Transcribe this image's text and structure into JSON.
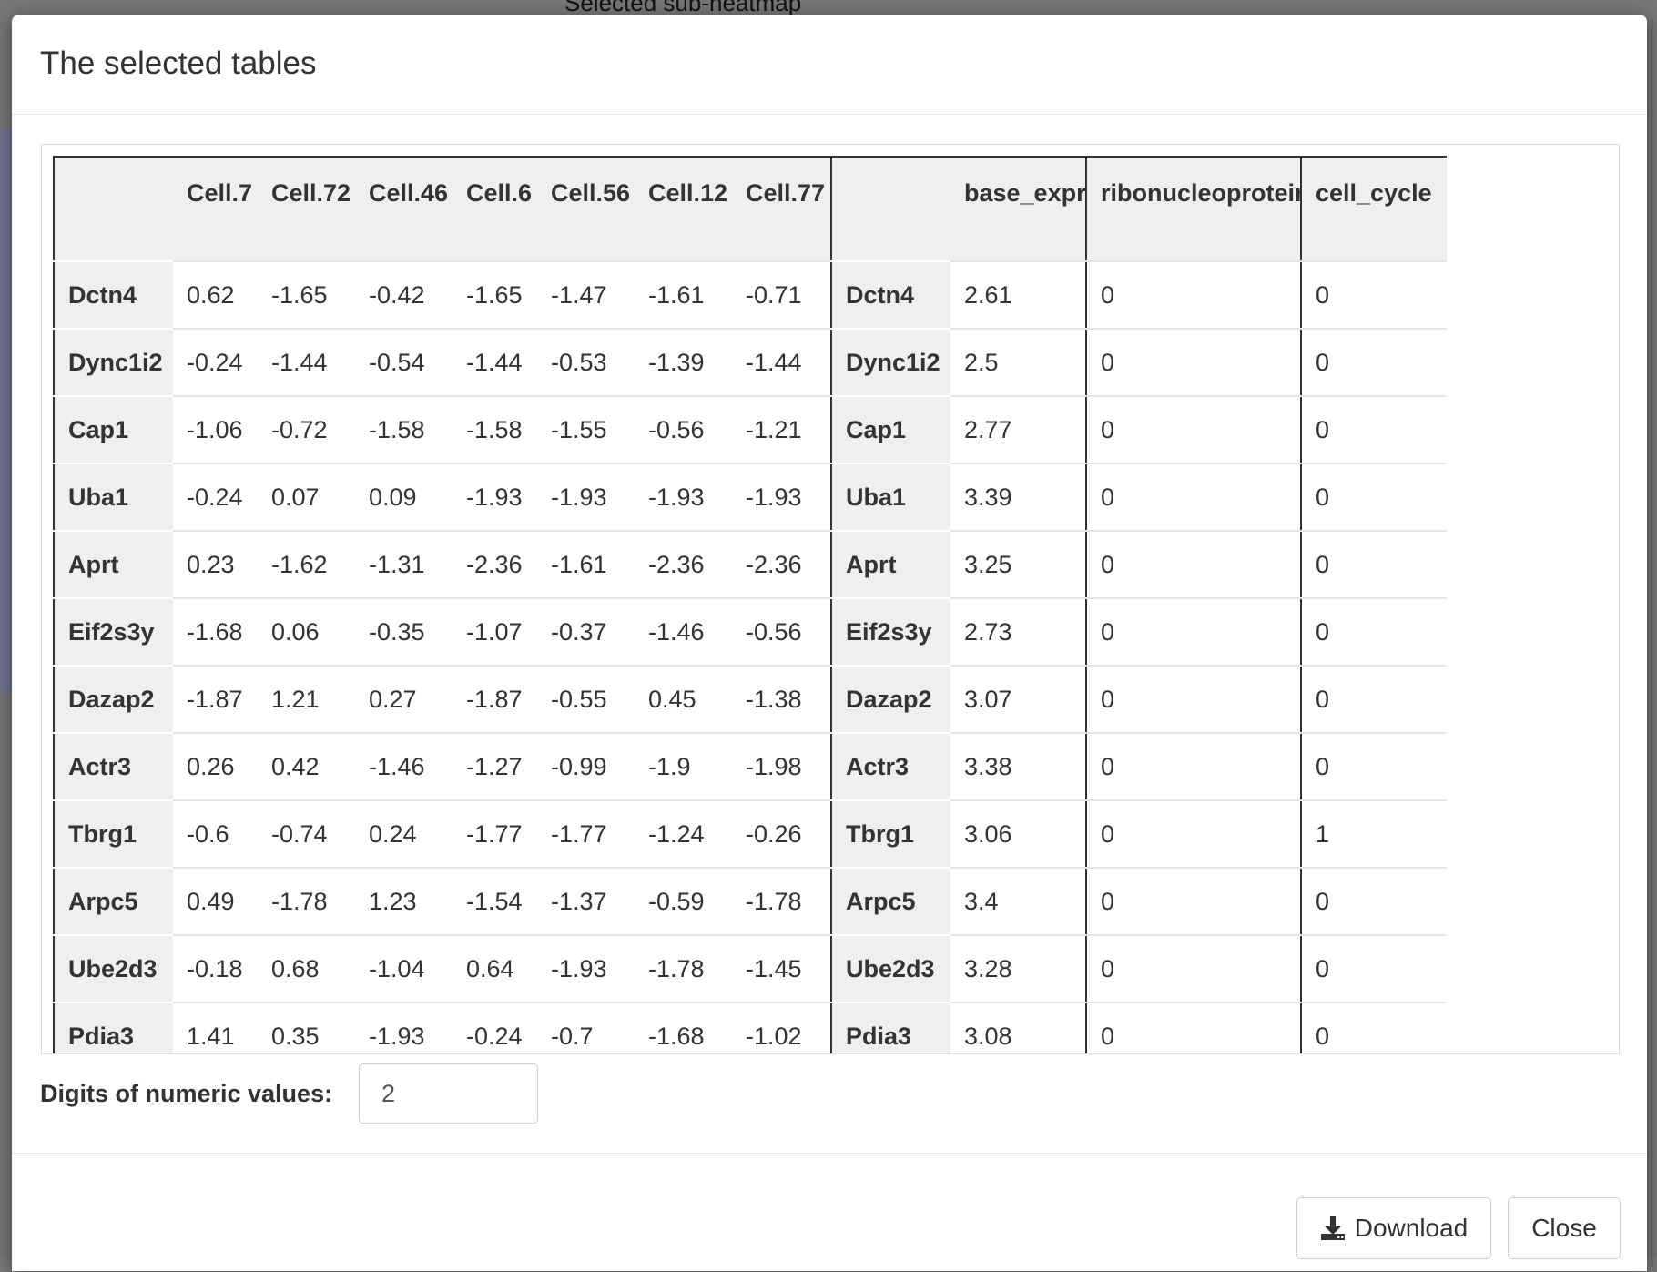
{
  "background": {
    "title": "Selected sub-heatmap"
  },
  "modal": {
    "title": "The selected tables",
    "digits_label": "Digits of numeric values:",
    "digits_value": "2",
    "download_label": "Download",
    "close_label": "Close"
  },
  "expr_table": {
    "columns": [
      "",
      "Cell.7",
      "Cell.72",
      "Cell.46",
      "Cell.6",
      "Cell.56",
      "Cell.12",
      "Cell.77"
    ],
    "rows": [
      {
        "gene": "Dctn4",
        "values": [
          "0.62",
          "-1.65",
          "-0.42",
          "-1.65",
          "-1.47",
          "-1.61",
          "-0.71"
        ]
      },
      {
        "gene": "Dync1i2",
        "values": [
          "-0.24",
          "-1.44",
          "-0.54",
          "-1.44",
          "-0.53",
          "-1.39",
          "-1.44"
        ]
      },
      {
        "gene": "Cap1",
        "values": [
          "-1.06",
          "-0.72",
          "-1.58",
          "-1.58",
          "-1.55",
          "-0.56",
          "-1.21"
        ]
      },
      {
        "gene": "Uba1",
        "values": [
          "-0.24",
          "0.07",
          "0.09",
          "-1.93",
          "-1.93",
          "-1.93",
          "-1.93"
        ]
      },
      {
        "gene": "Aprt",
        "values": [
          "0.23",
          "-1.62",
          "-1.31",
          "-2.36",
          "-1.61",
          "-2.36",
          "-2.36"
        ]
      },
      {
        "gene": "Eif2s3y",
        "values": [
          "-1.68",
          "0.06",
          "-0.35",
          "-1.07",
          "-0.37",
          "-1.46",
          "-0.56"
        ]
      },
      {
        "gene": "Dazap2",
        "values": [
          "-1.87",
          "1.21",
          "0.27",
          "-1.87",
          "-0.55",
          "0.45",
          "-1.38"
        ]
      },
      {
        "gene": "Actr3",
        "values": [
          "0.26",
          "0.42",
          "-1.46",
          "-1.27",
          "-0.99",
          "-1.9",
          "-1.98"
        ]
      },
      {
        "gene": "Tbrg1",
        "values": [
          "-0.6",
          "-0.74",
          "0.24",
          "-1.77",
          "-1.77",
          "-1.24",
          "-0.26"
        ]
      },
      {
        "gene": "Arpc5",
        "values": [
          "0.49",
          "-1.78",
          "1.23",
          "-1.54",
          "-1.37",
          "-0.59",
          "-1.78"
        ]
      },
      {
        "gene": "Ube2d3",
        "values": [
          "-0.18",
          "0.68",
          "-1.04",
          "0.64",
          "-1.93",
          "-1.78",
          "-1.45"
        ]
      },
      {
        "gene": "Pdia3",
        "values": [
          "1.41",
          "0.35",
          "-1.93",
          "-0.24",
          "-0.7",
          "-1.68",
          "-1.02"
        ]
      }
    ]
  },
  "anno_table": {
    "columns": [
      "",
      "base_expr"
    ],
    "rows": [
      {
        "gene": "Dctn4",
        "values": [
          "2.61"
        ]
      },
      {
        "gene": "Dync1i2",
        "values": [
          "2.5"
        ]
      },
      {
        "gene": "Cap1",
        "values": [
          "2.77"
        ]
      },
      {
        "gene": "Uba1",
        "values": [
          "3.39"
        ]
      },
      {
        "gene": "Aprt",
        "values": [
          "3.25"
        ]
      },
      {
        "gene": "Eif2s3y",
        "values": [
          "2.73"
        ]
      },
      {
        "gene": "Dazap2",
        "values": [
          "3.07"
        ]
      },
      {
        "gene": "Actr3",
        "values": [
          "3.38"
        ]
      },
      {
        "gene": "Tbrg1",
        "values": [
          "3.06"
        ]
      },
      {
        "gene": "Arpc5",
        "values": [
          "3.4"
        ]
      },
      {
        "gene": "Ube2d3",
        "values": [
          "3.28"
        ]
      },
      {
        "gene": "Pdia3",
        "values": [
          "3.08"
        ]
      }
    ]
  },
  "ribo_table": {
    "columns": [
      "ribonucleoprotein"
    ],
    "rows": [
      [
        "0"
      ],
      [
        "0"
      ],
      [
        "0"
      ],
      [
        "0"
      ],
      [
        "0"
      ],
      [
        "0"
      ],
      [
        "0"
      ],
      [
        "0"
      ],
      [
        "0"
      ],
      [
        "0"
      ],
      [
        "0"
      ],
      [
        "0"
      ]
    ]
  },
  "cycle_table": {
    "columns": [
      "cell_cycle"
    ],
    "rows": [
      [
        "0"
      ],
      [
        "0"
      ],
      [
        "0"
      ],
      [
        "0"
      ],
      [
        "0"
      ],
      [
        "0"
      ],
      [
        "0"
      ],
      [
        "0"
      ],
      [
        "1"
      ],
      [
        "0"
      ],
      [
        "0"
      ],
      [
        "0"
      ]
    ]
  }
}
